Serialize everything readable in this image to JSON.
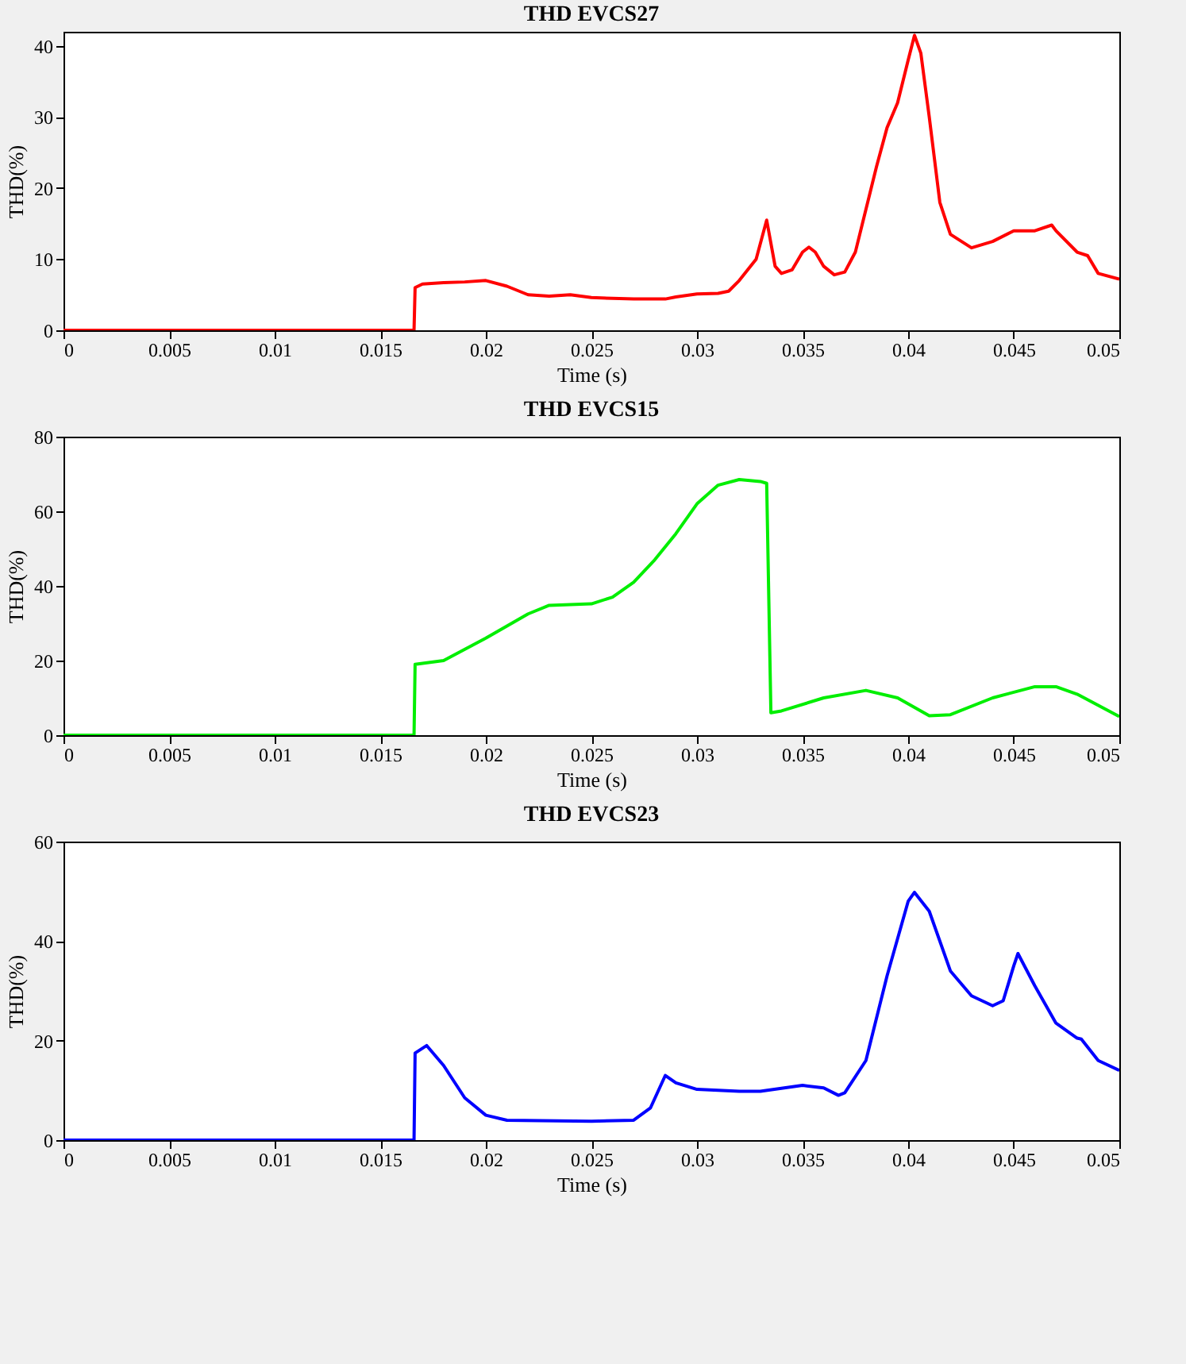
{
  "chart_data": [
    {
      "type": "line",
      "title": "THD EVCS27",
      "xlabel": "Time (s)",
      "ylabel": "THD(%)",
      "xlim": [
        0,
        0.05
      ],
      "ylim": [
        0,
        42
      ],
      "xticks": [
        0,
        0.005,
        0.01,
        0.015,
        0.02,
        0.025,
        0.03,
        0.035,
        0.04,
        0.045,
        0.05
      ],
      "yticks": [
        0,
        10,
        20,
        30,
        40
      ],
      "grid": false,
      "x": [
        0,
        0.0166,
        0.01665,
        0.017,
        0.018,
        0.019,
        0.02,
        0.021,
        0.022,
        0.023,
        0.024,
        0.025,
        0.027,
        0.0285,
        0.029,
        0.03,
        0.031,
        0.0315,
        0.032,
        0.0328,
        0.0333,
        0.0337,
        0.034,
        0.0345,
        0.035,
        0.0353,
        0.0356,
        0.036,
        0.0365,
        0.037,
        0.0375,
        0.038,
        0.0385,
        0.039,
        0.0395,
        0.04,
        0.0403,
        0.0406,
        0.041,
        0.0415,
        0.042,
        0.043,
        0.044,
        0.045,
        0.046,
        0.0468,
        0.047,
        0.048,
        0.0485,
        0.049,
        0.05
      ],
      "series": [
        {
          "color": "#ff0000",
          "values": [
            0,
            0,
            6,
            6.5,
            6.7,
            6.8,
            7,
            6.2,
            5,
            4.8,
            5,
            4.6,
            4.4,
            4.4,
            4.7,
            5.1,
            5.2,
            5.5,
            7,
            10,
            15.5,
            9,
            8,
            8.5,
            11,
            11.7,
            11,
            9,
            7.8,
            8.2,
            11,
            17,
            23,
            28.5,
            32,
            38,
            41.5,
            39,
            30,
            18,
            13.5,
            11.6,
            12.5,
            14,
            14,
            14.8,
            14,
            11,
            10.5,
            8,
            7.2
          ]
        }
      ]
    },
    {
      "type": "line",
      "title": "THD EVCS15",
      "xlabel": "Time (s)",
      "ylabel": "THD(%)",
      "xlim": [
        0,
        0.05
      ],
      "ylim": [
        0,
        80
      ],
      "xticks": [
        0,
        0.005,
        0.01,
        0.015,
        0.02,
        0.025,
        0.03,
        0.035,
        0.04,
        0.045,
        0.05
      ],
      "yticks": [
        0,
        20,
        40,
        60,
        80
      ],
      "grid": false,
      "x": [
        0,
        0.0166,
        0.01665,
        0.018,
        0.02,
        0.022,
        0.023,
        0.025,
        0.026,
        0.027,
        0.028,
        0.029,
        0.03,
        0.031,
        0.032,
        0.033,
        0.0333,
        0.0335,
        0.034,
        0.036,
        0.038,
        0.0395,
        0.041,
        0.042,
        0.044,
        0.046,
        0.047,
        0.048,
        0.05
      ],
      "series": [
        {
          "color": "#00ee00",
          "values": [
            0,
            0,
            19,
            20,
            26,
            32.5,
            34.8,
            35.2,
            37,
            41,
            47,
            54,
            62,
            67,
            68.5,
            68,
            67.5,
            6,
            6.5,
            10,
            12,
            10,
            5.2,
            5.5,
            10,
            13,
            13,
            11,
            5
          ]
        }
      ]
    },
    {
      "type": "line",
      "title": "THD EVCS23",
      "xlabel": "Time (s)",
      "ylabel": "THD(%)",
      "xlim": [
        0,
        0.05
      ],
      "ylim": [
        0,
        60
      ],
      "xticks": [
        0,
        0.005,
        0.01,
        0.015,
        0.02,
        0.025,
        0.03,
        0.035,
        0.04,
        0.045,
        0.05
      ],
      "yticks": [
        0,
        20,
        40,
        60
      ],
      "grid": false,
      "x": [
        0,
        0.0166,
        0.01665,
        0.0172,
        0.018,
        0.019,
        0.02,
        0.021,
        0.025,
        0.027,
        0.0278,
        0.0285,
        0.029,
        0.03,
        0.032,
        0.033,
        0.035,
        0.036,
        0.0367,
        0.037,
        0.038,
        0.039,
        0.04,
        0.0403,
        0.041,
        0.042,
        0.043,
        0.044,
        0.0445,
        0.045,
        0.0452,
        0.046,
        0.047,
        0.048,
        0.0482,
        0.049,
        0.05
      ],
      "series": [
        {
          "color": "#0000ff",
          "values": [
            0,
            0,
            17.5,
            19,
            15,
            8.5,
            5,
            4,
            3.8,
            4,
            6.5,
            13,
            11.5,
            10.2,
            9.8,
            9.8,
            11,
            10.5,
            9,
            9.5,
            16,
            33,
            48,
            49.8,
            46,
            34,
            29,
            27,
            28,
            35,
            37.5,
            31,
            23.5,
            20.5,
            20.3,
            16,
            14
          ]
        }
      ]
    }
  ]
}
